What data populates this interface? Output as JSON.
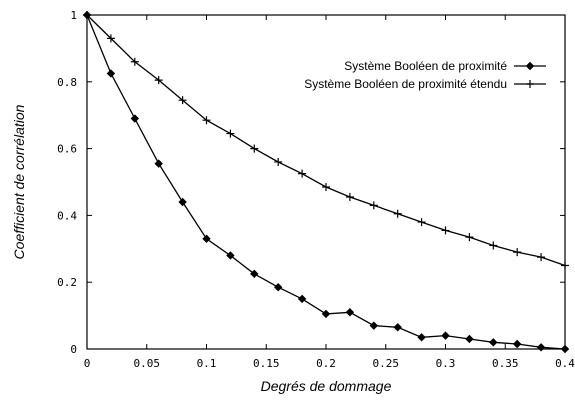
{
  "chart_data": {
    "type": "line",
    "xlabel": "Degrés de dommage",
    "ylabel": "Coefficient de corrélation",
    "xlim": [
      0,
      0.4
    ],
    "ylim": [
      0,
      1
    ],
    "x_ticks": [
      "0",
      "0.05",
      "0.1",
      "0.15",
      "0.2",
      "0.25",
      "0.3",
      "0.35",
      "0.4"
    ],
    "y_ticks": [
      "0",
      "0.2",
      "0.4",
      "0.6",
      "0.8",
      "1"
    ],
    "grid": false,
    "legend_position": "top-right",
    "series": [
      {
        "name": "Système Booléen de proximité",
        "marker": "diamond",
        "color": "#000000",
        "x": [
          0,
          0.02,
          0.04,
          0.06,
          0.08,
          0.1,
          0.12,
          0.14,
          0.16,
          0.18,
          0.2,
          0.22,
          0.24,
          0.26,
          0.28,
          0.3,
          0.32,
          0.34,
          0.36,
          0.38,
          0.4
        ],
        "y": [
          1.0,
          0.825,
          0.69,
          0.555,
          0.44,
          0.33,
          0.28,
          0.225,
          0.185,
          0.15,
          0.105,
          0.11,
          0.07,
          0.065,
          0.035,
          0.04,
          0.03,
          0.02,
          0.015,
          0.005,
          0.0
        ]
      },
      {
        "name": "Système Booléen de proximité étendu",
        "marker": "plus",
        "color": "#000000",
        "x": [
          0,
          0.02,
          0.04,
          0.06,
          0.08,
          0.1,
          0.12,
          0.14,
          0.16,
          0.18,
          0.2,
          0.22,
          0.24,
          0.26,
          0.28,
          0.3,
          0.32,
          0.34,
          0.36,
          0.38,
          0.4
        ],
        "y": [
          1.0,
          0.93,
          0.86,
          0.805,
          0.745,
          0.685,
          0.645,
          0.6,
          0.56,
          0.525,
          0.485,
          0.455,
          0.43,
          0.405,
          0.38,
          0.355,
          0.335,
          0.31,
          0.29,
          0.275,
          0.25
        ]
      }
    ]
  }
}
